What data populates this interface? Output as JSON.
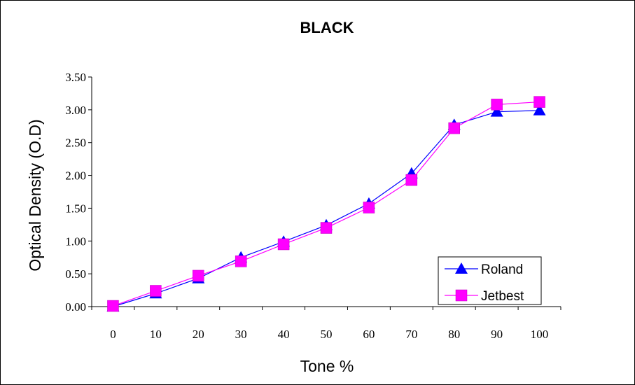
{
  "chart_data": {
    "type": "line",
    "title": "BLACK",
    "xlabel": "Tone %",
    "ylabel": "Optical Density (O.D)",
    "categories": [
      "0",
      "10",
      "20",
      "30",
      "40",
      "50",
      "60",
      "70",
      "80",
      "90",
      "100"
    ],
    "ylim": [
      0,
      3.5
    ],
    "yticks": [
      "0.00",
      "0.50",
      "1.00",
      "1.50",
      "2.00",
      "2.50",
      "3.00",
      "3.50"
    ],
    "grid": false,
    "legend_position": "bottom-right",
    "series": [
      {
        "name": "Roland",
        "color": "#0000ff",
        "marker": "triangle",
        "values": [
          0.0,
          0.2,
          0.43,
          0.75,
          0.99,
          1.24,
          1.57,
          2.03,
          2.77,
          2.97,
          2.99
        ]
      },
      {
        "name": "Jetbest",
        "color": "#ff00ff",
        "marker": "square",
        "values": [
          0.01,
          0.24,
          0.47,
          0.69,
          0.95,
          1.2,
          1.51,
          1.93,
          2.72,
          3.08,
          3.12
        ]
      }
    ]
  }
}
